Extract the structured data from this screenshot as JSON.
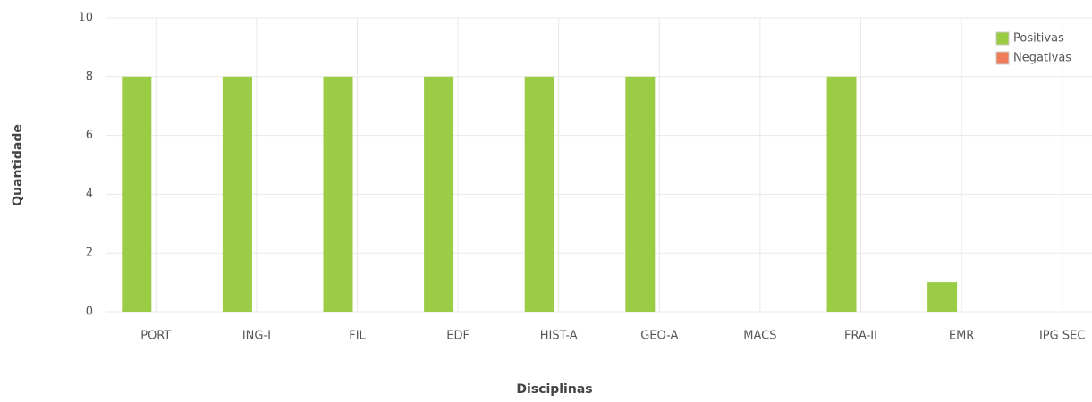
{
  "chart_data": {
    "type": "bar",
    "categories": [
      "PORT",
      "ING-I",
      "FIL",
      "EDF",
      "HIST-A",
      "GEO-A",
      "MACS",
      "FRA-II",
      "EMR",
      "IPG SEC"
    ],
    "series": [
      {
        "name": "Positivas",
        "color": "#9bcc45",
        "values": [
          8,
          8,
          8,
          8,
          8,
          8,
          0,
          8,
          1,
          0
        ]
      },
      {
        "name": "Negativas",
        "color": "#f07d5a",
        "values": [
          0,
          0,
          0,
          0,
          0,
          0,
          0,
          0,
          0,
          0
        ]
      }
    ],
    "ylim": [
      0,
      10
    ],
    "yticks": [
      0,
      2,
      4,
      6,
      8,
      10
    ],
    "grid": true,
    "xlabel": "Disciplinas",
    "ylabel": "Quantidade",
    "legend": "top-right"
  }
}
